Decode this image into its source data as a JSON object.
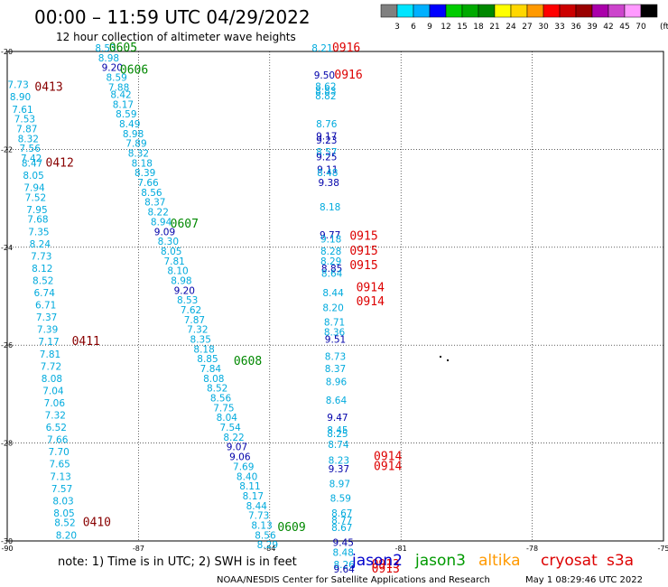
{
  "header": {
    "title": "00:00 – 11:59 UTC 04/29/2022",
    "subtitle": "12 hour collection of altimeter wave heights"
  },
  "colorbar": {
    "labels": [
      "3",
      "6",
      "9",
      "12",
      "15",
      "18",
      "21",
      "24",
      "27",
      "30",
      "33",
      "36",
      "39",
      "42",
      "45",
      "70"
    ],
    "unit": "(ft)",
    "colors": [
      "#808080",
      "#00e5ff",
      "#00b0ff",
      "#0000ff",
      "#00cc00",
      "#00aa00",
      "#008800",
      "#ffff00",
      "#ffd700",
      "#ff9900",
      "#ff0000",
      "#cc0000",
      "#990000",
      "#aa00aa",
      "#cc44cc",
      "#ff99ff",
      "#000000"
    ]
  },
  "note": "note:  1) Time is in UTC;  2) SWH is in feet",
  "satellites": [
    {
      "name": "jason2",
      "color": "#0000cc"
    },
    {
      "name": "jason3",
      "color": "#009900"
    },
    {
      "name": "altika",
      "color": "#ff9900"
    },
    {
      "name": "cryosat",
      "color": "#dd0000"
    },
    {
      "name": "s3a",
      "color": "#dd0000"
    }
  ],
  "footer": {
    "credit": "NOAA/NESDIS Center for Satellite Applications and Research",
    "timestamp": "May  1 08:29:46 UTC 2022"
  },
  "chart_data": {
    "type": "scatter",
    "xlim": [
      -90,
      -75
    ],
    "ylim": [
      -30,
      -20
    ],
    "x_ticks": [
      -90,
      -87,
      -84,
      -81,
      -78,
      -75
    ],
    "y_ticks": [
      -20,
      -22,
      -24,
      -26,
      -28,
      -30
    ],
    "x_tick_labels": [
      "-90",
      "-87",
      "-84",
      "-81",
      "-78",
      "-75"
    ],
    "y_tick_labels": [
      "-20",
      "-22",
      "-24",
      "-26",
      "-28",
      "-30"
    ],
    "grid": true,
    "colors": {
      "light": "#00aadd",
      "dark": "#0000aa",
      "green": "#008800",
      "red": "#dd0000",
      "maroon": "#880000"
    },
    "points": [
      {
        "x": -87.75,
        "y": -20.0,
        "v": "8.53",
        "c": "light"
      },
      {
        "x": -87.68,
        "y": -20.2,
        "v": "8.98",
        "c": "light"
      },
      {
        "x": -87.6,
        "y": -20.4,
        "v": "9.20",
        "c": "dark"
      },
      {
        "x": -87.5,
        "y": -20.6,
        "v": "8.59",
        "c": "light"
      },
      {
        "x": -87.45,
        "y": -20.8,
        "v": "7.88",
        "c": "light"
      },
      {
        "x": -87.4,
        "y": -20.95,
        "v": "8.42",
        "c": "light"
      },
      {
        "x": -87.35,
        "y": -21.15,
        "v": "8.17",
        "c": "light"
      },
      {
        "x": -87.28,
        "y": -21.35,
        "v": "8.59",
        "c": "light"
      },
      {
        "x": -87.2,
        "y": -21.55,
        "v": "8.49",
        "c": "light"
      },
      {
        "x": -87.12,
        "y": -21.75,
        "v": "8.98",
        "c": "light"
      },
      {
        "x": -87.05,
        "y": -21.95,
        "v": "7.89",
        "c": "light"
      },
      {
        "x": -87.0,
        "y": -22.15,
        "v": "8.32",
        "c": "light"
      },
      {
        "x": -86.92,
        "y": -22.35,
        "v": "8.18",
        "c": "light"
      },
      {
        "x": -86.85,
        "y": -22.55,
        "v": "8.39",
        "c": "light"
      },
      {
        "x": -86.78,
        "y": -22.75,
        "v": "7.66",
        "c": "light"
      },
      {
        "x": -86.7,
        "y": -22.95,
        "v": "8.56",
        "c": "light"
      },
      {
        "x": -86.62,
        "y": -23.15,
        "v": "8.37",
        "c": "light"
      },
      {
        "x": -86.55,
        "y": -23.35,
        "v": "8.22",
        "c": "light"
      },
      {
        "x": -86.48,
        "y": -23.55,
        "v": "8.94",
        "c": "light"
      },
      {
        "x": -86.4,
        "y": -23.75,
        "v": "9.09",
        "c": "dark"
      },
      {
        "x": -86.32,
        "y": -23.95,
        "v": "8.30",
        "c": "light"
      },
      {
        "x": -86.25,
        "y": -24.15,
        "v": "8.05",
        "c": "light"
      },
      {
        "x": -86.18,
        "y": -24.35,
        "v": "7.81",
        "c": "light"
      },
      {
        "x": -86.1,
        "y": -24.55,
        "v": "8.10",
        "c": "light"
      },
      {
        "x": -86.02,
        "y": -24.75,
        "v": "8.98",
        "c": "light"
      },
      {
        "x": -85.95,
        "y": -24.95,
        "v": "9.20",
        "c": "dark"
      },
      {
        "x": -85.88,
        "y": -25.15,
        "v": "8.53",
        "c": "light"
      },
      {
        "x": -85.8,
        "y": -25.35,
        "v": "7.62",
        "c": "light"
      },
      {
        "x": -85.72,
        "y": -25.55,
        "v": "7.87",
        "c": "light"
      },
      {
        "x": -85.65,
        "y": -25.75,
        "v": "7.32",
        "c": "light"
      },
      {
        "x": -85.58,
        "y": -25.95,
        "v": "8.35",
        "c": "light"
      },
      {
        "x": -85.5,
        "y": -26.15,
        "v": "8.18",
        "c": "light"
      },
      {
        "x": -85.42,
        "y": -26.35,
        "v": "8.85",
        "c": "light"
      },
      {
        "x": -85.35,
        "y": -26.55,
        "v": "7.84",
        "c": "light"
      },
      {
        "x": -85.28,
        "y": -26.75,
        "v": "8.08",
        "c": "light"
      },
      {
        "x": -85.2,
        "y": -26.95,
        "v": "8.52",
        "c": "light"
      },
      {
        "x": -85.12,
        "y": -27.15,
        "v": "8.56",
        "c": "light"
      },
      {
        "x": -85.05,
        "y": -27.35,
        "v": "7.75",
        "c": "light"
      },
      {
        "x": -84.98,
        "y": -27.55,
        "v": "8.04",
        "c": "light"
      },
      {
        "x": -84.9,
        "y": -27.75,
        "v": "7.54",
        "c": "light"
      },
      {
        "x": -84.82,
        "y": -27.95,
        "v": "8.22",
        "c": "light"
      },
      {
        "x": -84.75,
        "y": -28.15,
        "v": "9.07",
        "c": "dark"
      },
      {
        "x": -84.68,
        "y": -28.35,
        "v": "9.06",
        "c": "dark"
      },
      {
        "x": -84.6,
        "y": -28.55,
        "v": "7.69",
        "c": "light"
      },
      {
        "x": -84.52,
        "y": -28.75,
        "v": "8.40",
        "c": "light"
      },
      {
        "x": -84.45,
        "y": -28.95,
        "v": "8.11",
        "c": "light"
      },
      {
        "x": -84.38,
        "y": -29.15,
        "v": "8.17",
        "c": "light"
      },
      {
        "x": -84.3,
        "y": -29.35,
        "v": "8.44",
        "c": "light"
      },
      {
        "x": -84.25,
        "y": -29.55,
        "v": "7.73",
        "c": "light"
      },
      {
        "x": -84.18,
        "y": -29.75,
        "v": "8.13",
        "c": "light"
      },
      {
        "x": -84.1,
        "y": -29.95,
        "v": "8.56",
        "c": "light"
      },
      {
        "x": -84.05,
        "y": -30.15,
        "v": "8.29",
        "c": "light"
      },
      {
        "x": -89.75,
        "y": -20.75,
        "v": "7.73",
        "c": "light"
      },
      {
        "x": -89.7,
        "y": -21.0,
        "v": "8.90",
        "c": "light"
      },
      {
        "x": -89.65,
        "y": -21.25,
        "v": "7.61",
        "c": "light"
      },
      {
        "x": -89.6,
        "y": -21.45,
        "v": "7.53",
        "c": "light"
      },
      {
        "x": -89.55,
        "y": -21.65,
        "v": "7.87",
        "c": "light"
      },
      {
        "x": -89.52,
        "y": -21.85,
        "v": "8.32",
        "c": "light"
      },
      {
        "x": -89.48,
        "y": -22.05,
        "v": "7.56",
        "c": "light"
      },
      {
        "x": -89.45,
        "y": -22.25,
        "v": "7.42",
        "c": "light"
      },
      {
        "x": -89.43,
        "y": -22.35,
        "v": "8.47",
        "c": "light"
      },
      {
        "x": -89.4,
        "y": -22.6,
        "v": "8.05",
        "c": "light"
      },
      {
        "x": -89.38,
        "y": -22.85,
        "v": "7.94",
        "c": "light"
      },
      {
        "x": -89.35,
        "y": -23.05,
        "v": "7.52",
        "c": "light"
      },
      {
        "x": -89.32,
        "y": -23.3,
        "v": "7.95",
        "c": "light"
      },
      {
        "x": -89.3,
        "y": -23.5,
        "v": "7.68",
        "c": "light"
      },
      {
        "x": -89.28,
        "y": -23.75,
        "v": "7.35",
        "c": "light"
      },
      {
        "x": -89.25,
        "y": -24.0,
        "v": "8.24",
        "c": "light"
      },
      {
        "x": -89.22,
        "y": -24.25,
        "v": "7.73",
        "c": "light"
      },
      {
        "x": -89.2,
        "y": -24.5,
        "v": "8.12",
        "c": "light"
      },
      {
        "x": -89.18,
        "y": -24.75,
        "v": "8.52",
        "c": "light"
      },
      {
        "x": -89.15,
        "y": -25.0,
        "v": "6.74",
        "c": "light"
      },
      {
        "x": -89.12,
        "y": -25.25,
        "v": "6.71",
        "c": "light"
      },
      {
        "x": -89.1,
        "y": -25.5,
        "v": "7.37",
        "c": "light"
      },
      {
        "x": -89.08,
        "y": -25.75,
        "v": "7.39",
        "c": "light"
      },
      {
        "x": -89.05,
        "y": -26.0,
        "v": "7.17",
        "c": "light"
      },
      {
        "x": -89.02,
        "y": -26.25,
        "v": "7.81",
        "c": "light"
      },
      {
        "x": -89.0,
        "y": -26.5,
        "v": "7.72",
        "c": "light"
      },
      {
        "x": -88.98,
        "y": -26.75,
        "v": "8.08",
        "c": "light"
      },
      {
        "x": -88.95,
        "y": -27.0,
        "v": "7.04",
        "c": "light"
      },
      {
        "x": -88.92,
        "y": -27.25,
        "v": "7.06",
        "c": "light"
      },
      {
        "x": -88.9,
        "y": -27.5,
        "v": "7.32",
        "c": "light"
      },
      {
        "x": -88.88,
        "y": -27.75,
        "v": "6.52",
        "c": "light"
      },
      {
        "x": -88.85,
        "y": -28.0,
        "v": "7.66",
        "c": "light"
      },
      {
        "x": -88.82,
        "y": -28.25,
        "v": "7.70",
        "c": "light"
      },
      {
        "x": -88.8,
        "y": -28.5,
        "v": "7.65",
        "c": "light"
      },
      {
        "x": -88.78,
        "y": -28.75,
        "v": "7.13",
        "c": "light"
      },
      {
        "x": -88.75,
        "y": -29.0,
        "v": "7.57",
        "c": "light"
      },
      {
        "x": -88.72,
        "y": -29.25,
        "v": "8.03",
        "c": "light"
      },
      {
        "x": -88.7,
        "y": -29.5,
        "v": "8.05",
        "c": "light"
      },
      {
        "x": -88.68,
        "y": -29.7,
        "v": "8.52",
        "c": "light"
      },
      {
        "x": -88.65,
        "y": -29.95,
        "v": "8.20",
        "c": "light"
      },
      {
        "x": -82.8,
        "y": -20.0,
        "v": "8.21",
        "c": "light"
      },
      {
        "x": -82.75,
        "y": -20.55,
        "v": "9.50",
        "c": "dark"
      },
      {
        "x": -82.72,
        "y": -20.78,
        "v": "8.62",
        "c": "light"
      },
      {
        "x": -82.72,
        "y": -20.88,
        "v": "8.83",
        "c": "light"
      },
      {
        "x": -82.72,
        "y": -20.98,
        "v": "8.82",
        "c": "light"
      },
      {
        "x": -82.7,
        "y": -21.55,
        "v": "8.76",
        "c": "light"
      },
      {
        "x": -82.7,
        "y": -21.8,
        "v": "9.17",
        "c": "dark"
      },
      {
        "x": -82.7,
        "y": -21.88,
        "v": "9.23",
        "c": "dark"
      },
      {
        "x": -82.7,
        "y": -22.12,
        "v": "8.57",
        "c": "light"
      },
      {
        "x": -82.7,
        "y": -22.22,
        "v": "9.25",
        "c": "dark"
      },
      {
        "x": -82.68,
        "y": -22.48,
        "v": "9.11",
        "c": "dark"
      },
      {
        "x": -82.68,
        "y": -22.55,
        "v": "8.48",
        "c": "light"
      },
      {
        "x": -82.65,
        "y": -22.75,
        "v": "9.38",
        "c": "dark"
      },
      {
        "x": -82.62,
        "y": -23.25,
        "v": "8.18",
        "c": "light"
      },
      {
        "x": -82.62,
        "y": -23.82,
        "v": "9.77",
        "c": "dark"
      },
      {
        "x": -82.6,
        "y": -23.9,
        "v": "9.18",
        "c": "light"
      },
      {
        "x": -82.6,
        "y": -24.15,
        "v": "8.28",
        "c": "light"
      },
      {
        "x": -82.6,
        "y": -24.35,
        "v": "8.29",
        "c": "light"
      },
      {
        "x": -82.58,
        "y": -24.5,
        "v": "8.85",
        "c": "dark"
      },
      {
        "x": -82.58,
        "y": -24.6,
        "v": "8.64",
        "c": "light"
      },
      {
        "x": -82.55,
        "y": -25.0,
        "v": "8.44",
        "c": "light"
      },
      {
        "x": -82.55,
        "y": -25.3,
        "v": "8.20",
        "c": "light"
      },
      {
        "x": -82.52,
        "y": -25.6,
        "v": "8.71",
        "c": "light"
      },
      {
        "x": -82.52,
        "y": -25.8,
        "v": "8.36",
        "c": "light"
      },
      {
        "x": -82.5,
        "y": -25.95,
        "v": "9.51",
        "c": "dark"
      },
      {
        "x": -82.5,
        "y": -26.3,
        "v": "8.73",
        "c": "light"
      },
      {
        "x": -82.5,
        "y": -26.55,
        "v": "8.37",
        "c": "light"
      },
      {
        "x": -82.48,
        "y": -26.82,
        "v": "8.96",
        "c": "light"
      },
      {
        "x": -82.48,
        "y": -27.2,
        "v": "8.64",
        "c": "light"
      },
      {
        "x": -82.45,
        "y": -27.55,
        "v": "9.47",
        "c": "dark"
      },
      {
        "x": -82.45,
        "y": -27.8,
        "v": "8.45",
        "c": "light"
      },
      {
        "x": -82.45,
        "y": -27.88,
        "v": "8.25",
        "c": "light"
      },
      {
        "x": -82.43,
        "y": -28.1,
        "v": "8.74",
        "c": "light"
      },
      {
        "x": -82.42,
        "y": -28.42,
        "v": "8.23",
        "c": "light"
      },
      {
        "x": -82.42,
        "y": -28.6,
        "v": "9.37",
        "c": "dark"
      },
      {
        "x": -82.4,
        "y": -28.9,
        "v": "8.97",
        "c": "light"
      },
      {
        "x": -82.38,
        "y": -29.2,
        "v": "8.59",
        "c": "light"
      },
      {
        "x": -82.35,
        "y": -29.5,
        "v": "8.67",
        "c": "light"
      },
      {
        "x": -82.35,
        "y": -29.65,
        "v": "8.77",
        "c": "light"
      },
      {
        "x": -82.35,
        "y": -29.8,
        "v": "8.67",
        "c": "light"
      },
      {
        "x": -82.32,
        "y": -30.1,
        "v": "9.45",
        "c": "dark"
      },
      {
        "x": -82.32,
        "y": -30.3,
        "v": "8.48",
        "c": "light"
      },
      {
        "x": -82.3,
        "y": -30.55,
        "v": "8.26",
        "c": "light"
      },
      {
        "x": -82.3,
        "y": -30.65,
        "v": "9.64",
        "c": "dark"
      }
    ],
    "track_labels": [
      {
        "x": -87.35,
        "y": -20.0,
        "v": "0605",
        "c": "green"
      },
      {
        "x": -87.1,
        "y": -20.45,
        "v": "0606",
        "c": "green"
      },
      {
        "x": -85.95,
        "y": -23.6,
        "v": "0607",
        "c": "green"
      },
      {
        "x": -84.5,
        "y": -26.4,
        "v": "0608",
        "c": "green"
      },
      {
        "x": -83.5,
        "y": -29.8,
        "v": "0609",
        "c": "green"
      },
      {
        "x": -89.05,
        "y": -20.8,
        "v": "0413",
        "c": "maroon"
      },
      {
        "x": -88.8,
        "y": -22.35,
        "v": "0412",
        "c": "maroon"
      },
      {
        "x": -88.2,
        "y": -26.0,
        "v": "0411",
        "c": "maroon"
      },
      {
        "x": -87.95,
        "y": -29.7,
        "v": "0410",
        "c": "maroon"
      },
      {
        "x": -82.25,
        "y": -20.0,
        "v": "0916",
        "c": "red"
      },
      {
        "x": -82.2,
        "y": -20.55,
        "v": "0916",
        "c": "red"
      },
      {
        "x": -81.85,
        "y": -23.85,
        "v": "0915",
        "c": "red"
      },
      {
        "x": -81.85,
        "y": -24.15,
        "v": "0915",
        "c": "red"
      },
      {
        "x": -81.85,
        "y": -24.45,
        "v": "0915",
        "c": "red"
      },
      {
        "x": -81.7,
        "y": -24.9,
        "v": "0914",
        "c": "red"
      },
      {
        "x": -81.7,
        "y": -25.18,
        "v": "0914",
        "c": "red"
      },
      {
        "x": -81.3,
        "y": -28.35,
        "v": "0914",
        "c": "red"
      },
      {
        "x": -81.3,
        "y": -28.55,
        "v": "0914",
        "c": "red"
      },
      {
        "x": -81.35,
        "y": -30.55,
        "v": "0913",
        "c": "red"
      },
      {
        "x": -81.35,
        "y": -30.65,
        "v": "0913",
        "c": "red"
      }
    ]
  }
}
